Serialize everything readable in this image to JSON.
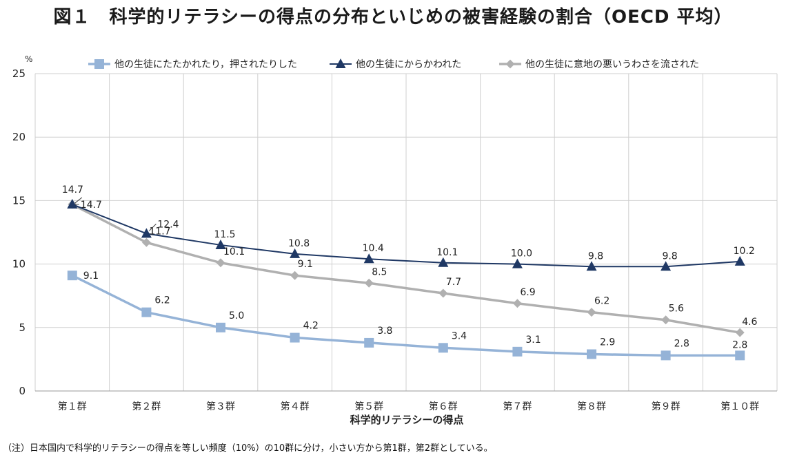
{
  "title": "図１　科学的リテラシーの得点の分布といじめの被害経験の割合（OECD 平均）",
  "note": "（注）日本国内で科学的リテラシーの得点を等しい頻度（10%）の10群に分け，小さい方から第1群，第2群としている。",
  "chart_data": {
    "type": "line",
    "title": "図１　科学的リテラシーの得点の分布といじめの被害経験の割合（OECD 平均）",
    "xlabel": "科学的リテラシーの得点",
    "ylabel": "%",
    "ylim": [
      0,
      25
    ],
    "yticks": [
      "0",
      "5",
      "10",
      "15",
      "20",
      "25"
    ],
    "grid": true,
    "legend_position": "top",
    "categories": [
      "第１群",
      "第２群",
      "第３群",
      "第４群",
      "第５群",
      "第６群",
      "第７群",
      "第８群",
      "第９群",
      "第１０群"
    ],
    "series": [
      {
        "name": "他の生徒にたたかれたり，押されたりした",
        "values": [
          9.1,
          6.2,
          5.0,
          4.2,
          3.8,
          3.4,
          3.1,
          2.9,
          2.8,
          2.8
        ],
        "labels": [
          "9.1",
          "6.2",
          "5.0",
          "4.2",
          "3.8",
          "3.4",
          "3.1",
          "2.9",
          "2.8",
          "2.8"
        ],
        "color": "#95b3d7",
        "marker": "square"
      },
      {
        "name": "他の生徒にからかわれた",
        "values": [
          14.7,
          12.4,
          11.5,
          10.8,
          10.4,
          10.1,
          10.0,
          9.8,
          9.8,
          10.2
        ],
        "labels": [
          "14.7",
          "12.4",
          "11.5",
          "10.8",
          "10.4",
          "10.1",
          "10.0",
          "9.8",
          "9.8",
          "10.2"
        ],
        "color": "#1f3864",
        "marker": "triangle"
      },
      {
        "name": "他の生徒に意地の悪いうわさを流された",
        "values": [
          14.7,
          11.7,
          10.1,
          9.1,
          8.5,
          7.7,
          6.9,
          6.2,
          5.6,
          4.6
        ],
        "labels": [
          "14.7",
          "11.7",
          "10.1",
          "9.1",
          "8.5",
          "7.7",
          "6.9",
          "6.2",
          "5.6",
          "4.6"
        ],
        "color": "#b0b0b0",
        "marker": "diamond"
      }
    ]
  }
}
